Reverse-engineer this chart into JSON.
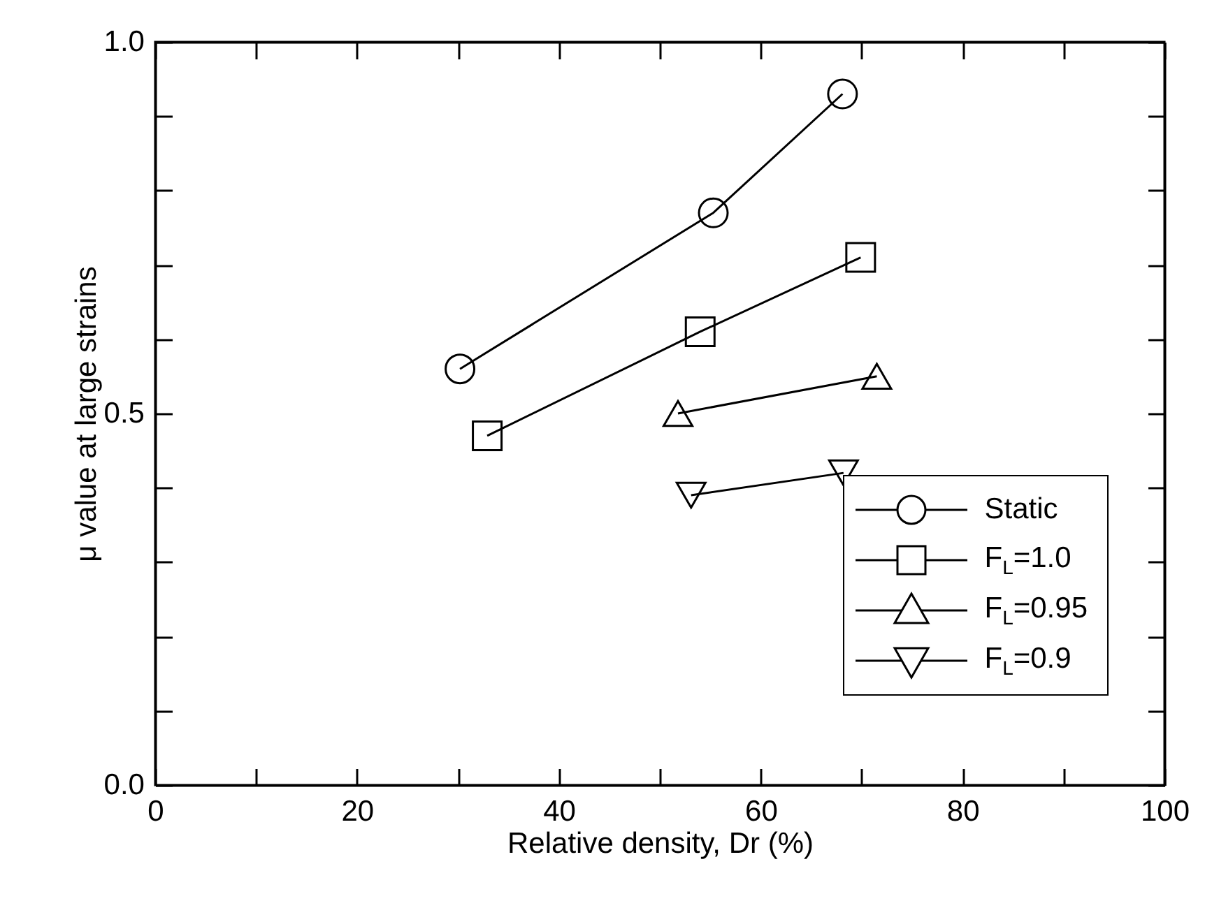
{
  "chart_data": {
    "type": "line",
    "xlabel": "Relative density, Dr (%)",
    "ylabel": "μ value at large strains",
    "xlim": [
      0,
      100
    ],
    "ylim": [
      0,
      1
    ],
    "xticks": [
      0,
      {
        "value": 10,
        "label": null
      },
      20,
      {
        "value": 30,
        "label": null
      },
      40,
      {
        "value": 50,
        "label": null
      },
      60,
      {
        "value": 70,
        "label": null
      },
      80,
      {
        "value": 90,
        "label": null
      },
      100
    ],
    "yticks": [
      {
        "value": 0,
        "label": "0.0"
      },
      {
        "value": 0.1,
        "label": null
      },
      {
        "value": 0.2,
        "label": null
      },
      {
        "value": 0.3,
        "label": null
      },
      {
        "value": 0.4,
        "label": null
      },
      0.5,
      {
        "value": 0.6,
        "label": null
      },
      {
        "value": 0.7,
        "label": null
      },
      {
        "value": 0.8,
        "label": null
      },
      {
        "value": 0.9,
        "label": null
      },
      {
        "value": 1,
        "label": "1.0"
      }
    ],
    "grid": false,
    "legend": "bottom right",
    "line_style": "solid",
    "series": [
      {
        "name": "Static",
        "color": "#000000",
        "marker": "circle",
        "x": [
          30.2,
          55.3,
          68.1
        ],
        "values": [
          0.56,
          0.77,
          0.93
        ]
      },
      {
        "name": "F$_{L}$=1.0",
        "color": "#000000",
        "marker": "square",
        "x": [
          32.9,
          54.0,
          69.9
        ],
        "values": [
          0.47,
          0.61,
          0.71
        ]
      },
      {
        "name": "F$_{L}$=0.95",
        "color": "#000000",
        "marker": "triangle",
        "x": [
          51.8,
          71.5
        ],
        "values": [
          0.5,
          0.55
        ]
      },
      {
        "name": "F$_{L}$=0.9",
        "color": "#000000",
        "marker": "triangle-down",
        "x": [
          53.1,
          68.2
        ],
        "values": [
          0.39,
          0.42
        ]
      }
    ]
  }
}
